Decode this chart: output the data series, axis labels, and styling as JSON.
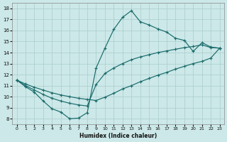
{
  "xlabel": "Humidex (Indice chaleur)",
  "bg_color": "#cce8e8",
  "line_color": "#1a6b6b",
  "grid_color": "#aacccc",
  "xlim": [
    -0.5,
    23.5
  ],
  "ylim": [
    7.5,
    18.5
  ],
  "xticks": [
    0,
    1,
    2,
    3,
    4,
    5,
    6,
    7,
    8,
    9,
    10,
    11,
    12,
    13,
    14,
    15,
    16,
    17,
    18,
    19,
    20,
    21,
    22,
    23
  ],
  "yticks": [
    8,
    9,
    10,
    11,
    12,
    13,
    14,
    15,
    16,
    17,
    18
  ],
  "lines": [
    {
      "x": [
        0,
        1,
        2,
        3,
        4,
        5,
        6,
        7,
        8,
        9,
        10,
        11,
        12,
        13,
        14,
        15,
        16,
        17,
        18,
        19,
        20,
        21,
        22,
        23
      ],
      "y": [
        11.5,
        10.9,
        10.4,
        9.6,
        8.9,
        8.6,
        8.0,
        8.05,
        8.55,
        12.6,
        14.4,
        16.1,
        17.2,
        17.8,
        16.8,
        16.5,
        16.15,
        15.85,
        15.3,
        15.1,
        14.1,
        14.9,
        14.5,
        14.4
      ]
    },
    {
      "x": [
        0,
        1,
        2,
        3,
        4,
        5,
        6,
        7,
        8,
        9,
        10,
        11,
        12,
        13,
        14,
        15,
        16,
        17,
        18,
        19,
        20,
        21,
        22,
        23
      ],
      "y": [
        11.5,
        11.0,
        10.6,
        10.2,
        9.85,
        9.6,
        9.4,
        9.25,
        9.15,
        11.1,
        12.1,
        12.6,
        13.0,
        13.35,
        13.6,
        13.8,
        14.0,
        14.15,
        14.3,
        14.45,
        14.55,
        14.7,
        14.45,
        14.4
      ]
    },
    {
      "x": [
        0,
        1,
        2,
        3,
        4,
        5,
        6,
        7,
        8,
        9,
        10,
        11,
        12,
        13,
        14,
        15,
        16,
        17,
        18,
        19,
        20,
        21,
        22,
        23
      ],
      "y": [
        11.5,
        11.15,
        10.85,
        10.6,
        10.35,
        10.15,
        10.0,
        9.85,
        9.75,
        9.65,
        9.95,
        10.3,
        10.7,
        11.0,
        11.35,
        11.65,
        11.95,
        12.2,
        12.5,
        12.75,
        13.0,
        13.2,
        13.5,
        14.4
      ]
    }
  ]
}
